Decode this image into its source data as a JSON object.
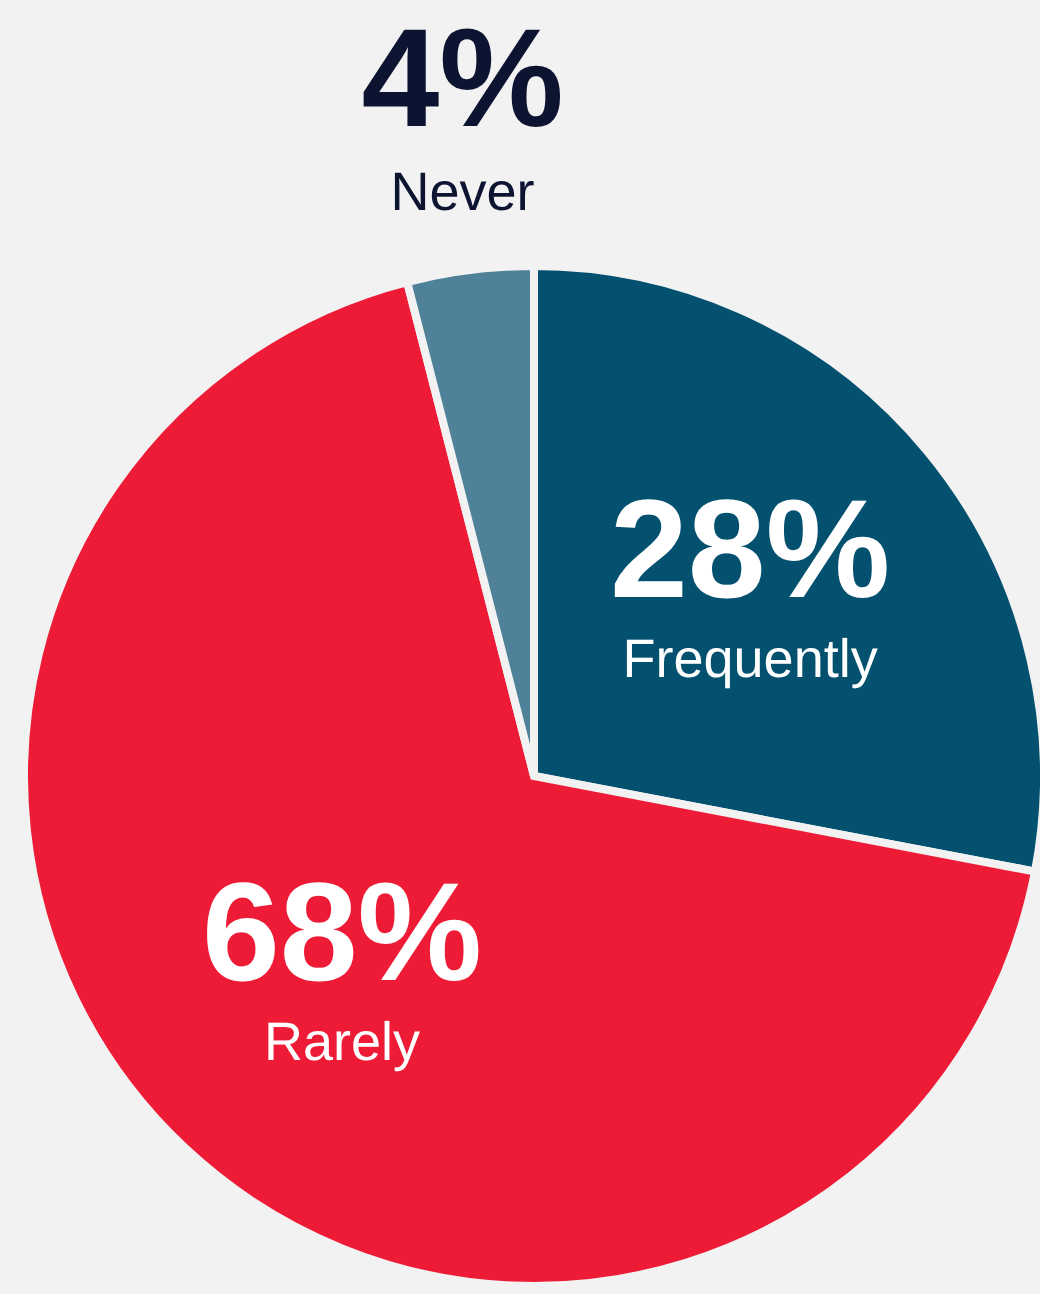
{
  "chart_data": {
    "type": "pie",
    "categories": [
      "Frequently",
      "Rarely",
      "Never"
    ],
    "values": [
      28,
      68,
      4
    ],
    "value_labels": [
      "28%",
      "68%",
      "4%"
    ],
    "colors": [
      "#04516f",
      "#ee1b36",
      "#4f8299"
    ]
  }
}
